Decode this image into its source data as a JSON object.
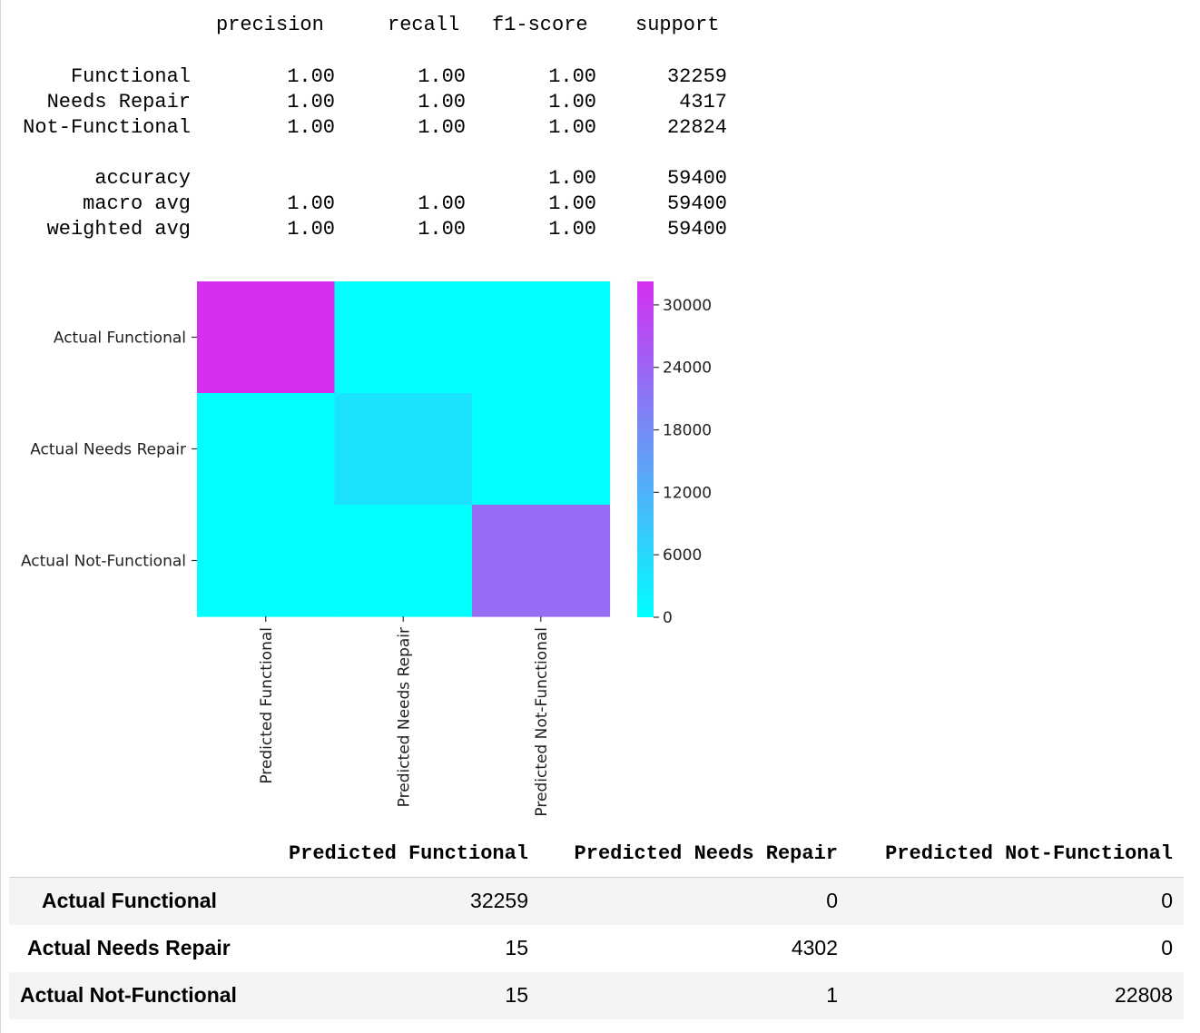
{
  "report": {
    "headers": [
      "precision",
      "recall",
      "f1-score",
      "support"
    ],
    "rows": [
      {
        "label": "Functional",
        "precision": "1.00",
        "recall": "1.00",
        "f1": "1.00",
        "support": "32259"
      },
      {
        "label": "Needs Repair",
        "precision": "1.00",
        "recall": "1.00",
        "f1": "1.00",
        "support": "4317"
      },
      {
        "label": "Not-Functional",
        "precision": "1.00",
        "recall": "1.00",
        "f1": "1.00",
        "support": "22824"
      }
    ],
    "summary": [
      {
        "label": "accuracy",
        "precision": "",
        "recall": "",
        "f1": "1.00",
        "support": "59400"
      },
      {
        "label": "macro avg",
        "precision": "1.00",
        "recall": "1.00",
        "f1": "1.00",
        "support": "59400"
      },
      {
        "label": "weighted avg",
        "precision": "1.00",
        "recall": "1.00",
        "f1": "1.00",
        "support": "59400"
      }
    ]
  },
  "chart_data": {
    "type": "heatmap",
    "y_categories": [
      "Actual Functional",
      "Actual Needs Repair",
      "Actual Not-Functional"
    ],
    "x_categories": [
      "Predicted Functional",
      "Predicted Needs Repair",
      "Predicted Not-Functional"
    ],
    "values": [
      [
        32259,
        0,
        0
      ],
      [
        15,
        4302,
        0
      ],
      [
        15,
        1,
        22808
      ]
    ],
    "colorbar": {
      "min": 0,
      "max": 32259,
      "ticks": [
        0,
        6000,
        12000,
        18000,
        24000,
        30000
      ],
      "tick_labels": [
        "0",
        "6000",
        "12000",
        "18000",
        "24000",
        "30000"
      ],
      "colors": [
        "#00ffff",
        "#d42ff0"
      ]
    }
  },
  "table": {
    "columns": [
      "Predicted Functional",
      "Predicted Needs Repair",
      "Predicted Not-Functional"
    ],
    "rows": [
      {
        "label": "Actual Functional",
        "values": [
          "32259",
          "0",
          "0"
        ]
      },
      {
        "label": "Actual Needs Repair",
        "values": [
          "15",
          "4302",
          "0"
        ]
      },
      {
        "label": "Actual Not-Functional",
        "values": [
          "15",
          "1",
          "22808"
        ]
      }
    ]
  }
}
